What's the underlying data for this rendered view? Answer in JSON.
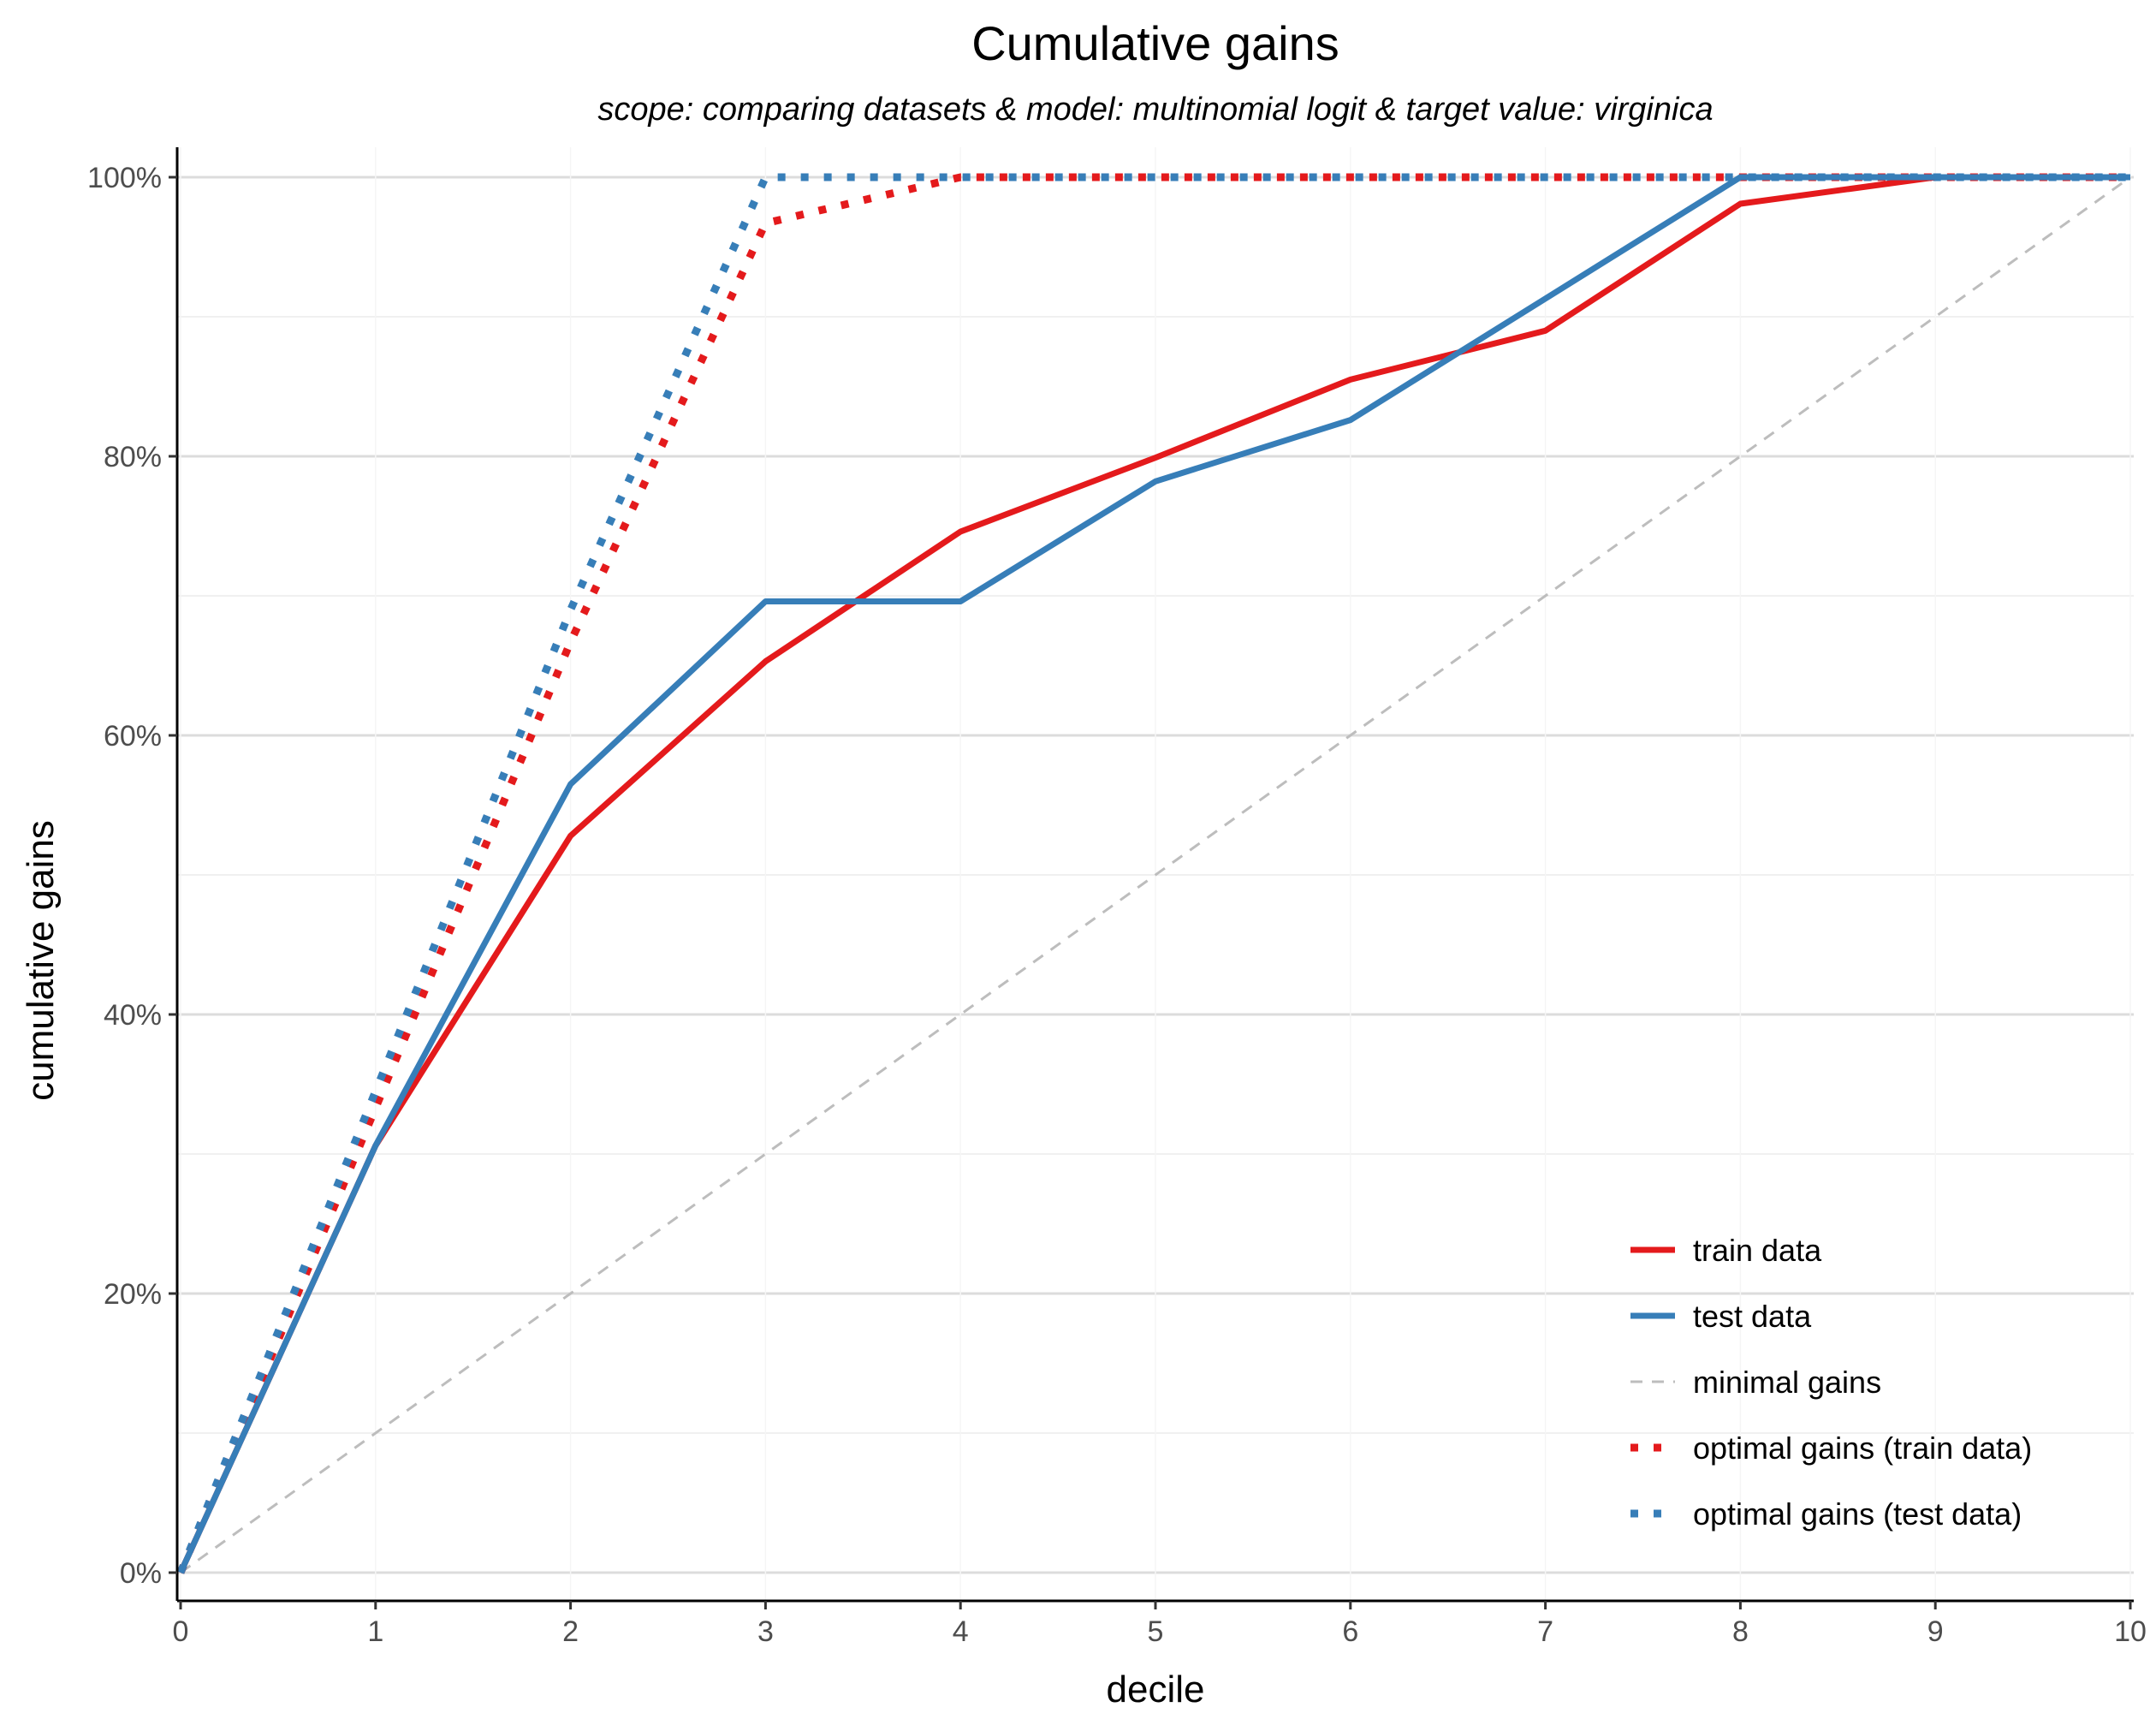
{
  "chart_data": {
    "type": "line",
    "title": "Cumulative gains",
    "subtitle": "scope: comparing datasets & model: multinomial logit & target value: virginica",
    "xlabel": "decile",
    "ylabel": "cumulative gains",
    "xlim": [
      0,
      10
    ],
    "ylim": [
      0,
      100
    ],
    "x_ticks": [
      0,
      1,
      2,
      3,
      4,
      5,
      6,
      7,
      8,
      9,
      10
    ],
    "x_tick_labels": [
      "0",
      "1",
      "2",
      "3",
      "4",
      "5",
      "6",
      "7",
      "8",
      "9",
      "10"
    ],
    "y_ticks": [
      0,
      20,
      40,
      60,
      80,
      100
    ],
    "y_tick_labels": [
      "0%",
      "20%",
      "40%",
      "60%",
      "80%",
      "100%"
    ],
    "y_minor_ticks": [
      10,
      30,
      50,
      70,
      90
    ],
    "grid": true,
    "legend_position": "bottom-right",
    "series": [
      {
        "name": "train data",
        "color": "#e41a1c",
        "style": "solid",
        "x": [
          0,
          1,
          2,
          3,
          4,
          5,
          6,
          7,
          8,
          9,
          10
        ],
        "y": [
          0,
          30.6,
          52.8,
          65.3,
          74.6,
          79.9,
          85.5,
          89.0,
          98.1,
          100,
          100
        ]
      },
      {
        "name": "test data",
        "color": "#377eb8",
        "style": "solid",
        "x": [
          0,
          1,
          2,
          3,
          4,
          5,
          6,
          7,
          8,
          9,
          10
        ],
        "y": [
          0,
          30.6,
          56.5,
          69.6,
          69.6,
          78.2,
          82.6,
          91.3,
          100,
          100,
          100
        ]
      },
      {
        "name": "minimal gains",
        "color": "#bdbdbd",
        "style": "dashed",
        "x": [
          0,
          10
        ],
        "y": [
          0,
          100
        ]
      },
      {
        "name": "optimal gains (train data)",
        "color": "#e41a1c",
        "style": "dotted",
        "x": [
          0,
          1,
          2,
          3,
          4,
          5,
          6,
          7,
          8,
          9,
          10
        ],
        "y": [
          0,
          33.3,
          66.7,
          96.7,
          100,
          100,
          100,
          100,
          100,
          100,
          100
        ]
      },
      {
        "name": "optimal gains (test data)",
        "color": "#377eb8",
        "style": "dotted",
        "x": [
          0,
          1,
          2,
          3,
          4,
          5,
          6,
          7,
          8,
          9,
          10
        ],
        "y": [
          0,
          34.5,
          69.0,
          100,
          100,
          100,
          100,
          100,
          100,
          100,
          100
        ]
      }
    ]
  }
}
